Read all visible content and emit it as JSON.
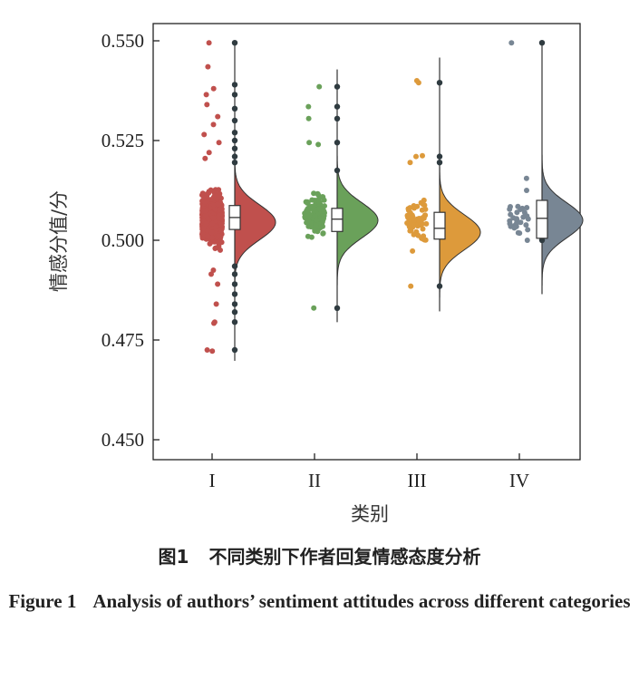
{
  "chart_data": {
    "type": "raincloud",
    "xlabel": "类别",
    "ylabel": "情感分值/分",
    "ylim": [
      0.444,
      0.555
    ],
    "yticks": [
      "0.550",
      "0.525",
      "0.500",
      "0.475",
      "0.450"
    ],
    "ytick_values": [
      0.55,
      0.525,
      0.5,
      0.475,
      0.45
    ],
    "grid": false,
    "categories": [
      "I",
      "II",
      "III",
      "IV"
    ],
    "series": [
      {
        "category": "I",
        "color": "#c0504d",
        "box": {
          "q1": 0.5027,
          "median": 0.5057,
          "q3": 0.5087,
          "whisker_low": 0.4698,
          "whisker_high": 0.5495
        },
        "density_peak": 0.5045,
        "n_points": 900,
        "jitter_center": 0.5055,
        "jitter_spread": 0.0045,
        "outliers": [
          0.5495,
          0.5435,
          0.538,
          0.5365,
          0.534,
          0.531,
          0.529,
          0.5265,
          0.5245,
          0.522,
          0.5205,
          0.4925,
          0.4915,
          0.489,
          0.484,
          0.4795,
          0.4792,
          0.4725,
          0.4722
        ],
        "whisker_points": [
          0.5495,
          0.539,
          0.5365,
          0.533,
          0.53,
          0.527,
          0.525,
          0.523,
          0.521,
          0.5195,
          0.4935,
          0.4915,
          0.489,
          0.4865,
          0.484,
          0.482,
          0.4795,
          0.4725
        ]
      },
      {
        "category": "II",
        "color": "#6aa15a",
        "box": {
          "q1": 0.5022,
          "median": 0.5053,
          "q3": 0.508,
          "whisker_low": 0.4795,
          "whisker_high": 0.5428
        },
        "density_peak": 0.505,
        "n_points": 140,
        "jitter_center": 0.506,
        "jitter_spread": 0.004,
        "outliers": [
          0.5385,
          0.5335,
          0.5305,
          0.5245,
          0.524,
          0.483
        ],
        "whisker_points": [
          0.5385,
          0.5335,
          0.5305,
          0.5245,
          0.5175,
          0.483
        ]
      },
      {
        "category": "III",
        "color": "#dd9a3b",
        "box": {
          "q1": 0.5003,
          "median": 0.503,
          "q3": 0.507,
          "whisker_low": 0.4822,
          "whisker_high": 0.5458
        },
        "density_peak": 0.502,
        "n_points": 60,
        "jitter_center": 0.5045,
        "jitter_spread": 0.0045,
        "outliers": [
          0.54,
          0.5395,
          0.5212,
          0.521,
          0.5195,
          0.4885
        ],
        "whisker_points": [
          0.5395,
          0.521,
          0.5195,
          0.4885
        ]
      },
      {
        "category": "IV",
        "color": "#788694",
        "box": {
          "q1": 0.5005,
          "median": 0.5055,
          "q3": 0.51,
          "whisker_low": 0.4865,
          "whisker_high": 0.5495
        },
        "density_peak": 0.505,
        "n_points": 28,
        "jitter_center": 0.505,
        "jitter_spread": 0.004,
        "outliers": [
          0.5495,
          0.5155,
          0.5125,
          0.5
        ],
        "whisker_points": [
          0.5495,
          0.5
        ]
      }
    ]
  },
  "caption": {
    "cn_label": "图1",
    "cn_text": "不同类别下作者回复情感态度分析",
    "en_label": "Figure 1",
    "en_text": "Analysis of authors’ sentiment attitudes across different categories"
  }
}
